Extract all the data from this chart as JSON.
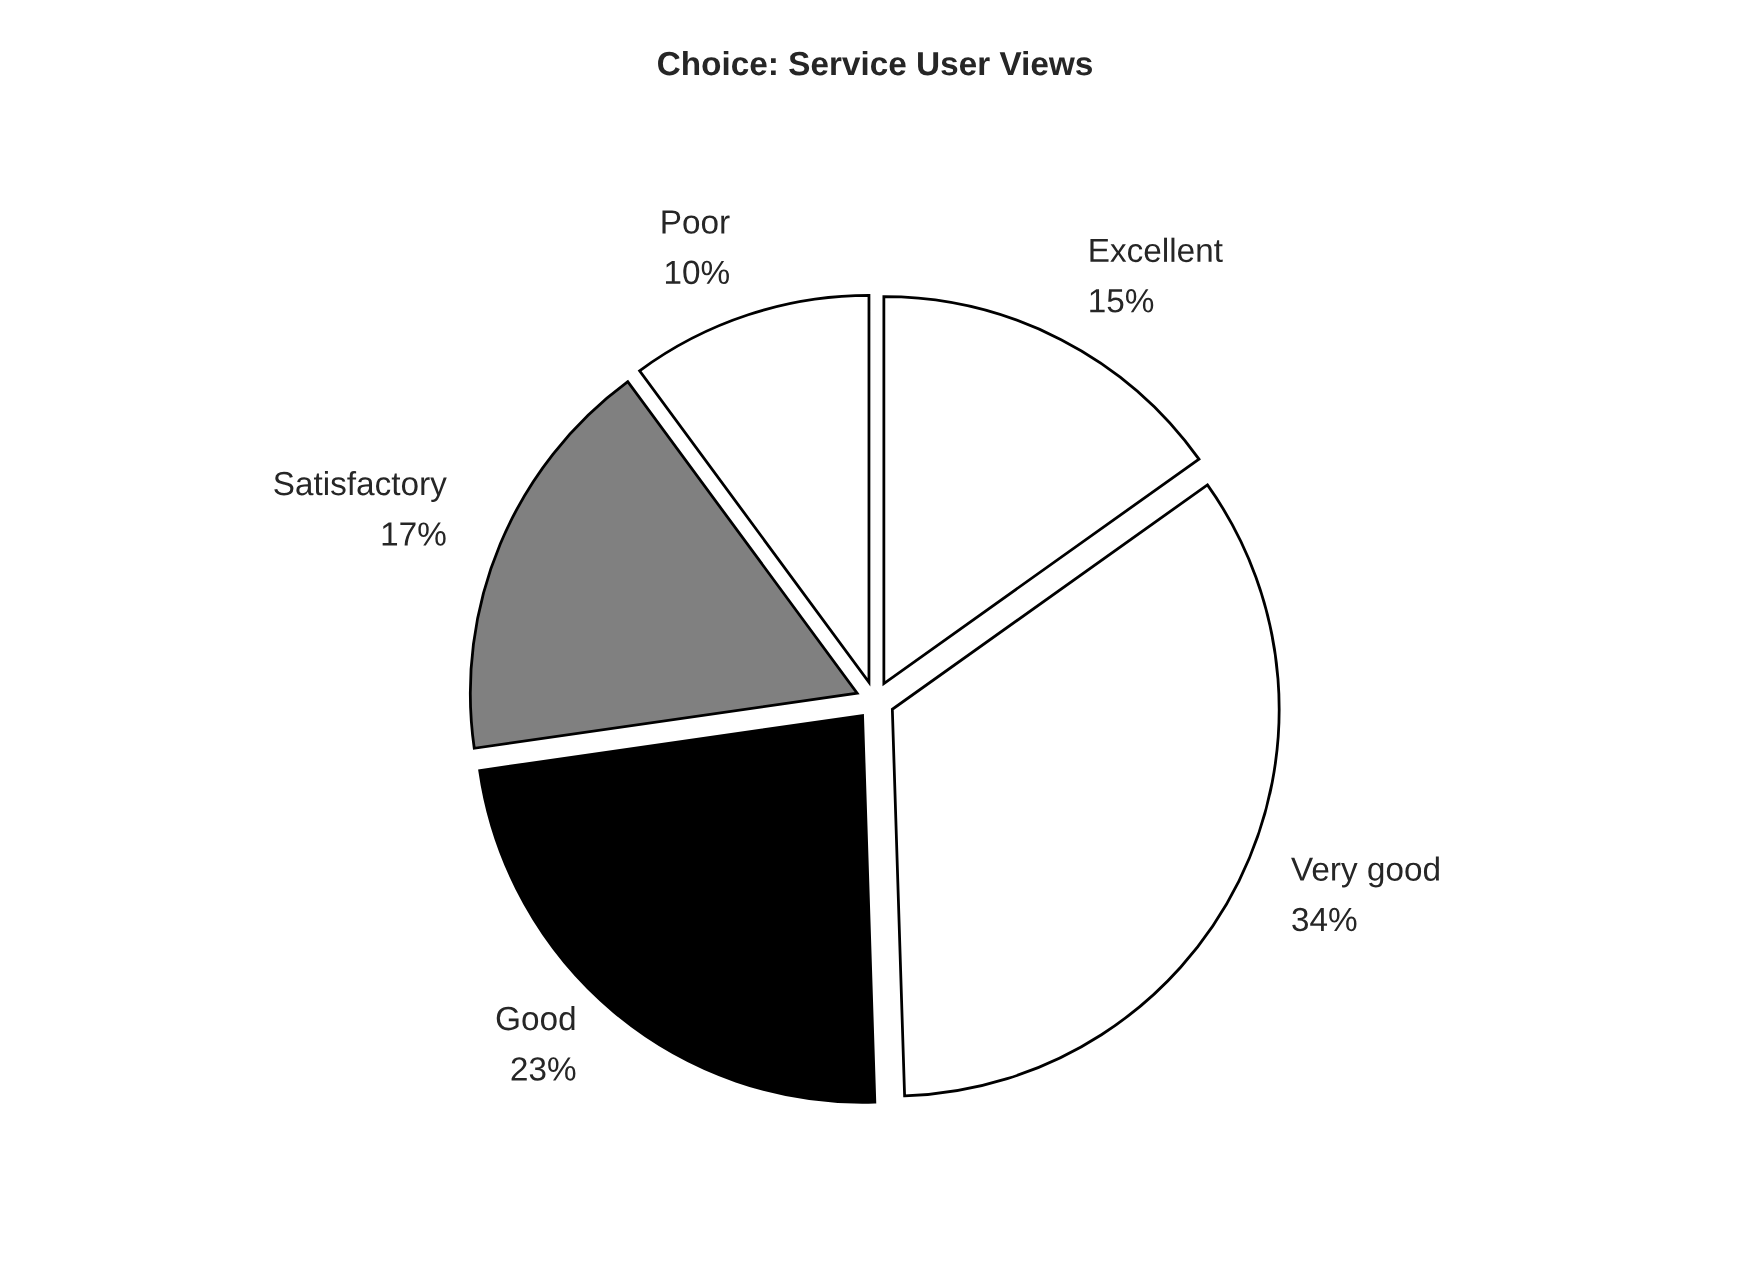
{
  "chart_data": {
    "type": "pie",
    "title": "Choice: Service User Views",
    "categories": [
      "Excellent",
      "Very good",
      "Good",
      "Satisfactory",
      "Poor"
    ],
    "values": [
      15,
      34,
      23,
      17,
      10
    ],
    "value_labels": [
      "15%",
      "34%",
      "23%",
      "17%",
      "10%"
    ],
    "colors": [
      "#ffffff",
      "#ffffff",
      "#000000",
      "#808080",
      "#ffffff"
    ],
    "legend": false
  }
}
